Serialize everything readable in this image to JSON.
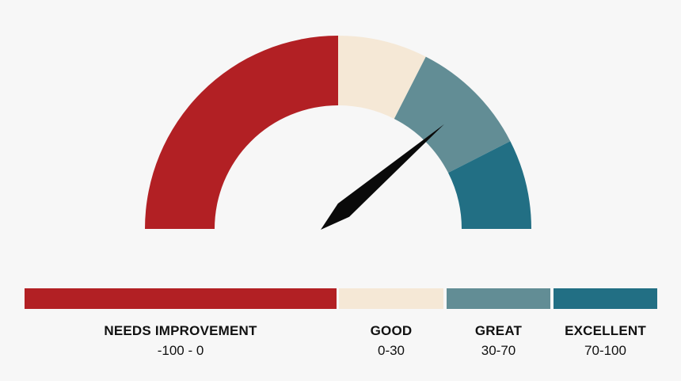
{
  "gauge": {
    "min": -100,
    "max": 100,
    "value": 55,
    "segments": [
      {
        "name": "NEEDS IMPROVEMENT",
        "range": "-100 - 0",
        "from": -100,
        "to": 0,
        "color": "#b22024"
      },
      {
        "name": "GOOD",
        "range": "0-30",
        "from": 0,
        "to": 30,
        "color": "#f5e8d6"
      },
      {
        "name": "GREAT",
        "range": "30-70",
        "from": 30,
        "to": 70,
        "color": "#628d95"
      },
      {
        "name": "EXCELLENT",
        "range": "70-100",
        "from": 70,
        "to": 100,
        "color": "#226f84"
      }
    ],
    "needle_color": "#0a0a0a"
  }
}
